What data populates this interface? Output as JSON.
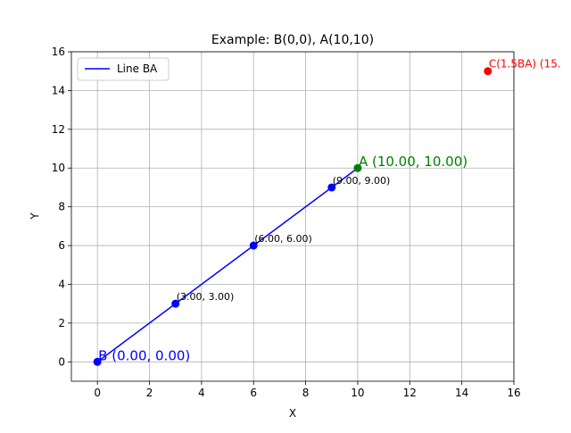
{
  "chart_data": {
    "type": "line",
    "title": "Example: B(0,0), A(10,10)",
    "xlabel": "X",
    "ylabel": "Y",
    "xlim": [
      -1,
      16
    ],
    "ylim": [
      -1,
      16
    ],
    "xticks": [
      0,
      2,
      4,
      6,
      8,
      10,
      12,
      14,
      16
    ],
    "yticks": [
      0,
      2,
      4,
      6,
      8,
      10,
      12,
      14,
      16
    ],
    "grid": true,
    "legend_placement": "upper-left",
    "colors": {
      "line": "#0000ff",
      "points": "#0000ff",
      "point_a": "#008000",
      "point_c": "#ff0000",
      "grid": "#b0b0b0"
    },
    "series": [
      {
        "name": "Line BA",
        "x": [
          0,
          10
        ],
        "y": [
          0,
          10
        ]
      }
    ],
    "intermediate_points": [
      {
        "x": 3,
        "y": 3,
        "label": "(3.00, 3.00)"
      },
      {
        "x": 6,
        "y": 6,
        "label": "(6.00, 6.00)"
      },
      {
        "x": 9,
        "y": 9,
        "label": "(9.00, 9.00)"
      }
    ],
    "point_b": {
      "x": 0,
      "y": 0,
      "label": "B (0.00, 0.00)"
    },
    "point_a": {
      "x": 10,
      "y": 10,
      "label": "A (10.00, 10.00)"
    },
    "point_c": {
      "x": 15,
      "y": 15,
      "label": "C(1.5BA) (15."
    }
  }
}
